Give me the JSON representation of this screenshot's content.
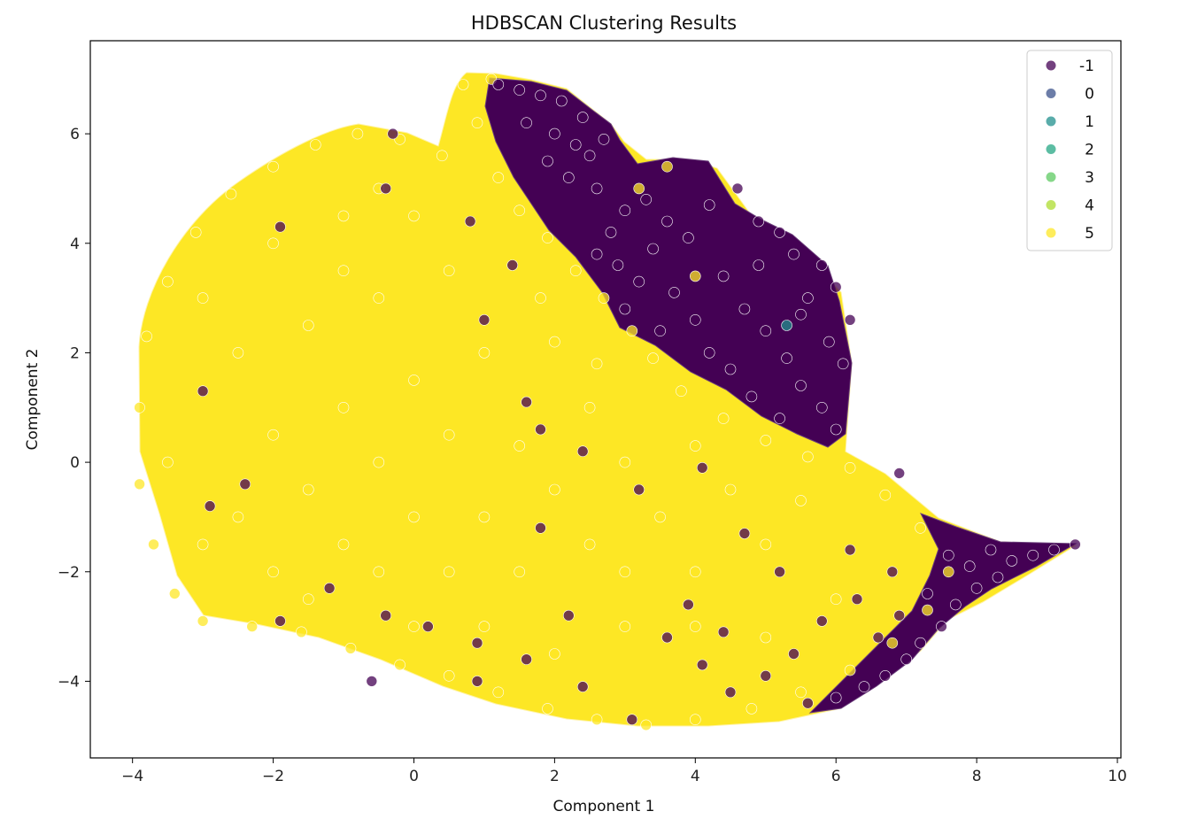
{
  "chart_data": {
    "type": "scatter",
    "title": "HDBSCAN Clustering Results",
    "xlabel": "Component 1",
    "ylabel": "Component 2",
    "xlim": [
      -4.6,
      10.05
    ],
    "ylim": [
      -5.4,
      7.7
    ],
    "xticks": [
      -4,
      -2,
      0,
      2,
      4,
      6,
      8,
      10
    ],
    "xtick_labels": [
      "−4",
      "−2",
      "0",
      "2",
      "4",
      "6",
      "8",
      "10"
    ],
    "yticks": [
      -4,
      -2,
      0,
      2,
      4,
      6
    ],
    "ytick_labels": [
      "−4",
      "−2",
      "0",
      "2",
      "4",
      "6"
    ],
    "grid": false,
    "legend_position": "top-right",
    "series": [
      {
        "name": "-1",
        "color": "#440154",
        "points": [
          [
            1.2,
            6.9
          ],
          [
            1.5,
            6.8
          ],
          [
            1.8,
            6.7
          ],
          [
            2.1,
            6.6
          ],
          [
            2.4,
            6.3
          ],
          [
            1.6,
            6.2
          ],
          [
            2.0,
            6.0
          ],
          [
            2.3,
            5.8
          ],
          [
            1.9,
            5.5
          ],
          [
            2.5,
            5.6
          ],
          [
            2.7,
            5.9
          ],
          [
            2.2,
            5.2
          ],
          [
            2.6,
            5.0
          ],
          [
            3.0,
            4.6
          ],
          [
            2.8,
            4.2
          ],
          [
            3.3,
            4.8
          ],
          [
            3.6,
            4.4
          ],
          [
            3.4,
            3.9
          ],
          [
            3.9,
            4.1
          ],
          [
            4.2,
            4.7
          ],
          [
            4.6,
            5.0
          ],
          [
            4.9,
            4.4
          ],
          [
            5.2,
            4.2
          ],
          [
            5.4,
            3.8
          ],
          [
            5.8,
            3.6
          ],
          [
            6.0,
            3.2
          ],
          [
            5.6,
            3.0
          ],
          [
            6.2,
            2.6
          ],
          [
            5.9,
            2.2
          ],
          [
            6.1,
            1.8
          ],
          [
            5.5,
            1.4
          ],
          [
            5.8,
            1.0
          ],
          [
            6.0,
            0.6
          ],
          [
            5.2,
            0.8
          ],
          [
            4.8,
            1.2
          ],
          [
            4.5,
            1.7
          ],
          [
            4.2,
            2.0
          ],
          [
            4.0,
            2.6
          ],
          [
            3.7,
            3.1
          ],
          [
            3.2,
            3.3
          ],
          [
            2.9,
            3.6
          ],
          [
            4.4,
            3.4
          ],
          [
            4.7,
            2.8
          ],
          [
            5.0,
            2.4
          ],
          [
            5.3,
            1.9
          ],
          [
            4.9,
            3.6
          ],
          [
            5.5,
            2.7
          ],
          [
            3.5,
            2.4
          ],
          [
            3.0,
            2.8
          ],
          [
            2.6,
            3.8
          ],
          [
            7.6,
            -1.7
          ],
          [
            7.9,
            -1.9
          ],
          [
            8.2,
            -1.6
          ],
          [
            8.5,
            -1.8
          ],
          [
            8.8,
            -1.7
          ],
          [
            9.1,
            -1.6
          ],
          [
            9.4,
            -1.5
          ],
          [
            8.0,
            -2.3
          ],
          [
            7.7,
            -2.6
          ],
          [
            8.3,
            -2.1
          ],
          [
            7.5,
            -3.0
          ],
          [
            7.2,
            -3.3
          ],
          [
            7.0,
            -3.6
          ],
          [
            6.7,
            -3.9
          ],
          [
            6.4,
            -4.1
          ],
          [
            6.0,
            -4.3
          ],
          [
            5.6,
            -4.4
          ],
          [
            7.3,
            -2.4
          ],
          [
            6.9,
            -2.8
          ],
          [
            6.6,
            -3.2
          ],
          [
            6.3,
            -2.5
          ],
          [
            5.8,
            -2.9
          ],
          [
            5.4,
            -3.5
          ],
          [
            5.0,
            -3.9
          ],
          [
            4.5,
            -4.2
          ],
          [
            4.1,
            -3.7
          ],
          [
            3.6,
            -3.2
          ],
          [
            3.1,
            -4.7
          ],
          [
            2.4,
            -4.1
          ],
          [
            1.6,
            -3.6
          ],
          [
            0.9,
            -3.3
          ],
          [
            0.2,
            -3.0
          ],
          [
            -0.4,
            -2.8
          ],
          [
            -1.2,
            -2.3
          ],
          [
            -1.9,
            -2.9
          ],
          [
            -2.4,
            -0.4
          ],
          [
            -3.0,
            1.3
          ],
          [
            -2.9,
            -0.8
          ],
          [
            -1.9,
            4.3
          ],
          [
            -0.4,
            5.0
          ],
          [
            -0.3,
            6.0
          ],
          [
            0.8,
            4.4
          ],
          [
            1.4,
            3.6
          ],
          [
            1.0,
            2.6
          ],
          [
            1.6,
            1.1
          ],
          [
            2.4,
            0.2
          ],
          [
            1.8,
            0.6
          ],
          [
            3.2,
            -0.5
          ],
          [
            4.1,
            -0.1
          ],
          [
            6.9,
            -0.2
          ],
          [
            1.8,
            -1.2
          ],
          [
            -0.6,
            -4.0
          ],
          [
            0.9,
            -4.0
          ],
          [
            2.2,
            -2.8
          ],
          [
            4.7,
            -1.3
          ],
          [
            5.2,
            -2.0
          ],
          [
            3.9,
            -2.6
          ],
          [
            4.4,
            -3.1
          ],
          [
            6.2,
            -1.6
          ],
          [
            6.8,
            -2.0
          ]
        ]
      },
      {
        "name": "0",
        "color": "#3b528b",
        "points": []
      },
      {
        "name": "1",
        "color": "#21908d",
        "points": [
          [
            5.3,
            2.5
          ]
        ]
      },
      {
        "name": "2",
        "color": "#26a784",
        "points": []
      },
      {
        "name": "3",
        "color": "#5ec962",
        "points": []
      },
      {
        "name": "4",
        "color": "#addc30",
        "points": []
      },
      {
        "name": "5",
        "color": "#fde725",
        "points": [
          [
            -3.9,
            1.0
          ],
          [
            -3.8,
            2.3
          ],
          [
            -3.5,
            3.3
          ],
          [
            -3.1,
            4.2
          ],
          [
            -2.6,
            4.9
          ],
          [
            -2.0,
            5.4
          ],
          [
            -1.4,
            5.8
          ],
          [
            -0.8,
            6.0
          ],
          [
            -0.2,
            5.9
          ],
          [
            0.4,
            5.6
          ],
          [
            0.9,
            6.2
          ],
          [
            0.7,
            6.9
          ],
          [
            1.1,
            7.0
          ],
          [
            -3.9,
            -0.4
          ],
          [
            -3.7,
            -1.5
          ],
          [
            -3.4,
            -2.4
          ],
          [
            -3.0,
            -2.9
          ],
          [
            -2.3,
            -3.0
          ],
          [
            -1.6,
            -3.1
          ],
          [
            -0.9,
            -3.4
          ],
          [
            -0.2,
            -3.7
          ],
          [
            0.5,
            -3.9
          ],
          [
            1.2,
            -4.2
          ],
          [
            1.9,
            -4.5
          ],
          [
            2.6,
            -4.7
          ],
          [
            3.3,
            -4.8
          ],
          [
            4.0,
            -4.7
          ],
          [
            4.8,
            -4.5
          ],
          [
            5.5,
            -4.2
          ],
          [
            6.2,
            -3.8
          ],
          [
            6.8,
            -3.3
          ],
          [
            7.3,
            -2.7
          ],
          [
            7.6,
            -2.0
          ],
          [
            7.2,
            -1.2
          ],
          [
            6.7,
            -0.6
          ],
          [
            6.2,
            -0.1
          ],
          [
            5.6,
            0.1
          ],
          [
            5.0,
            0.4
          ],
          [
            4.4,
            0.8
          ],
          [
            3.8,
            1.3
          ],
          [
            3.4,
            1.9
          ],
          [
            3.1,
            2.4
          ],
          [
            2.7,
            3.0
          ],
          [
            2.3,
            3.5
          ],
          [
            1.9,
            4.1
          ],
          [
            1.5,
            4.6
          ],
          [
            1.2,
            5.2
          ],
          [
            3.6,
            5.4
          ],
          [
            3.2,
            5.0
          ],
          [
            4.0,
            3.4
          ],
          [
            -2.5,
            2.0
          ],
          [
            -1.5,
            2.5
          ],
          [
            -0.5,
            3.0
          ],
          [
            0.5,
            3.5
          ],
          [
            -2.0,
            0.5
          ],
          [
            -1.0,
            1.0
          ],
          [
            0.0,
            1.5
          ],
          [
            1.0,
            2.0
          ],
          [
            2.0,
            2.2
          ],
          [
            -2.5,
            -1.0
          ],
          [
            -1.5,
            -0.5
          ],
          [
            -0.5,
            0.0
          ],
          [
            0.5,
            0.5
          ],
          [
            1.5,
            0.3
          ],
          [
            2.5,
            1.0
          ],
          [
            -2.0,
            -2.0
          ],
          [
            -1.0,
            -1.5
          ],
          [
            0.0,
            -1.0
          ],
          [
            1.0,
            -1.0
          ],
          [
            2.0,
            -0.5
          ],
          [
            3.0,
            0.0
          ],
          [
            4.0,
            0.3
          ],
          [
            -1.5,
            -2.5
          ],
          [
            -0.5,
            -2.0
          ],
          [
            0.5,
            -2.0
          ],
          [
            1.5,
            -2.0
          ],
          [
            2.5,
            -1.5
          ],
          [
            3.5,
            -1.0
          ],
          [
            4.5,
            -0.5
          ],
          [
            5.5,
            -0.7
          ],
          [
            0.0,
            -3.0
          ],
          [
            1.0,
            -3.0
          ],
          [
            2.0,
            -3.5
          ],
          [
            3.0,
            -3.0
          ],
          [
            4.0,
            -3.0
          ],
          [
            5.0,
            -3.2
          ],
          [
            6.0,
            -2.5
          ],
          [
            3.0,
            -2.0
          ],
          [
            4.0,
            -2.0
          ],
          [
            5.0,
            -1.5
          ],
          [
            -3.0,
            3.0
          ],
          [
            -2.0,
            4.0
          ],
          [
            -1.0,
            4.5
          ],
          [
            0.0,
            4.5
          ],
          [
            -3.5,
            0.0
          ],
          [
            -3.0,
            -1.5
          ],
          [
            -1.0,
            3.5
          ],
          [
            -0.5,
            5.0
          ],
          [
            1.8,
            3.0
          ],
          [
            2.6,
            1.8
          ]
        ]
      }
    ]
  }
}
